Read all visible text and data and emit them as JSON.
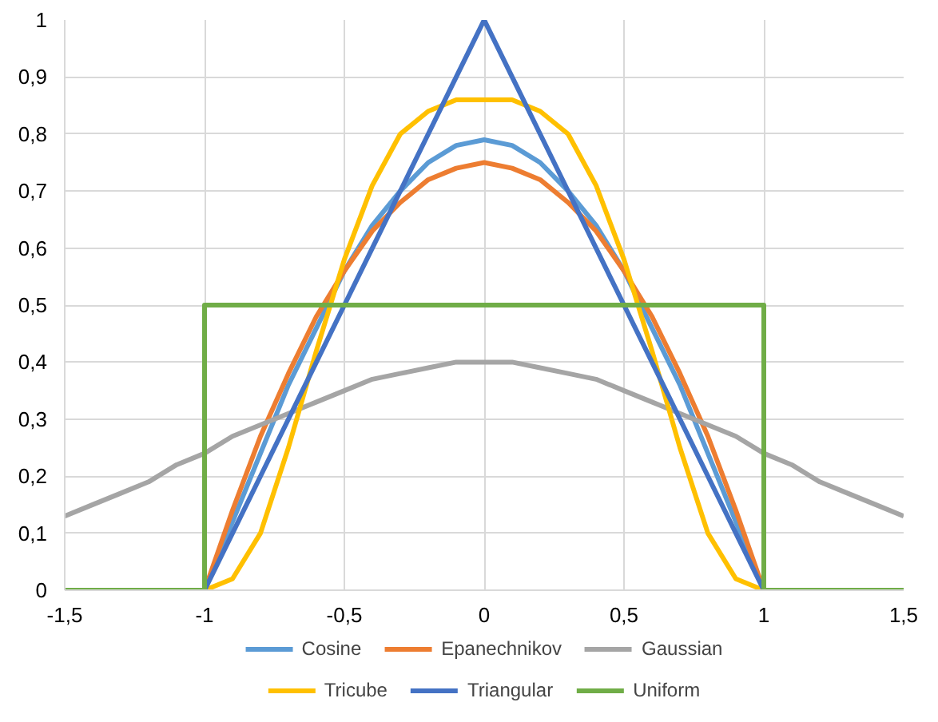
{
  "chart_data": {
    "type": "line",
    "x": [
      -1.5,
      -1.4,
      -1.3,
      -1.2,
      -1.1,
      -1.0,
      -0.9,
      -0.8,
      -0.7,
      -0.6,
      -0.5,
      -0.4,
      -0.3,
      -0.2,
      -0.1,
      0,
      0.1,
      0.2,
      0.3,
      0.4,
      0.5,
      0.6,
      0.7,
      0.8,
      0.9,
      1.0,
      1.1,
      1.2,
      1.3,
      1.4,
      1.5
    ],
    "series": [
      {
        "name": "Cosine",
        "color": "#5b9bd5",
        "values": [
          null,
          null,
          null,
          null,
          null,
          0,
          0.12,
          0.24,
          0.36,
          0.46,
          0.56,
          0.64,
          0.7,
          0.75,
          0.78,
          0.79,
          0.78,
          0.75,
          0.7,
          0.64,
          0.56,
          0.46,
          0.36,
          0.24,
          0.12,
          0,
          null,
          null,
          null,
          null,
          null
        ]
      },
      {
        "name": "Epanechnikov",
        "color": "#ed7d31",
        "values": [
          null,
          null,
          null,
          null,
          null,
          0,
          0.14,
          0.27,
          0.38,
          0.48,
          0.56,
          0.63,
          0.68,
          0.72,
          0.74,
          0.75,
          0.74,
          0.72,
          0.68,
          0.63,
          0.56,
          0.48,
          0.38,
          0.27,
          0.14,
          0,
          null,
          null,
          null,
          null,
          null
        ]
      },
      {
        "name": "Gaussian",
        "color": "#a5a5a5",
        "values": [
          0.13,
          0.15,
          0.17,
          0.19,
          0.22,
          0.24,
          0.27,
          0.29,
          0.31,
          0.33,
          0.35,
          0.37,
          0.38,
          0.39,
          0.4,
          0.4,
          0.4,
          0.39,
          0.38,
          0.37,
          0.35,
          0.33,
          0.31,
          0.29,
          0.27,
          0.24,
          0.22,
          0.19,
          0.17,
          0.15,
          0.13
        ]
      },
      {
        "name": "Tricube",
        "color": "#ffc000",
        "values": [
          null,
          null,
          null,
          null,
          null,
          0,
          0.02,
          0.1,
          0.25,
          0.42,
          0.58,
          0.71,
          0.8,
          0.84,
          0.86,
          0.86,
          0.86,
          0.84,
          0.8,
          0.71,
          0.58,
          0.42,
          0.25,
          0.1,
          0.02,
          0,
          null,
          null,
          null,
          null,
          null
        ]
      },
      {
        "name": "Triangular",
        "color": "#4472c4",
        "values": [
          null,
          null,
          null,
          null,
          null,
          0,
          0.1,
          0.2,
          0.3,
          0.4,
          0.5,
          0.6,
          0.7,
          0.8,
          0.9,
          1.0,
          0.9,
          0.8,
          0.7,
          0.6,
          0.5,
          0.4,
          0.3,
          0.2,
          0.1,
          0,
          null,
          null,
          null,
          null,
          null
        ]
      },
      {
        "name": "Uniform",
        "color": "#70ad47",
        "x": [
          -1.5,
          -1.0,
          -1.0,
          1.0,
          1.0,
          1.5
        ],
        "values": [
          0,
          0,
          0.5,
          0.5,
          0,
          0
        ]
      }
    ],
    "xlim": [
      -1.5,
      1.5
    ],
    "xticks": [
      {
        "value": -1.5,
        "label": "-1,5"
      },
      {
        "value": -1,
        "label": "-1"
      },
      {
        "value": -0.5,
        "label": "-0,5"
      },
      0,
      {
        "value": 0.5,
        "label": "0,5"
      },
      1,
      {
        "value": 1.5,
        "label": "1,5"
      }
    ],
    "ylim": [
      0,
      1
    ],
    "yticks": [
      0,
      {
        "value": 0.1,
        "label": "0,1"
      },
      {
        "value": 0.2,
        "label": "0,2"
      },
      {
        "value": 0.3,
        "label": "0,3"
      },
      {
        "value": 0.4,
        "label": "0,4"
      },
      {
        "value": 0.5,
        "label": "0,5"
      },
      {
        "value": 0.6,
        "label": "0,6"
      },
      {
        "value": 0.7,
        "label": "0,7"
      },
      {
        "value": 0.8,
        "label": "0,8"
      },
      {
        "value": 0.9,
        "label": "0,9"
      },
      1
    ],
    "grid": true,
    "legend": "bottom",
    "marker": "none",
    "line_style": "solid"
  }
}
